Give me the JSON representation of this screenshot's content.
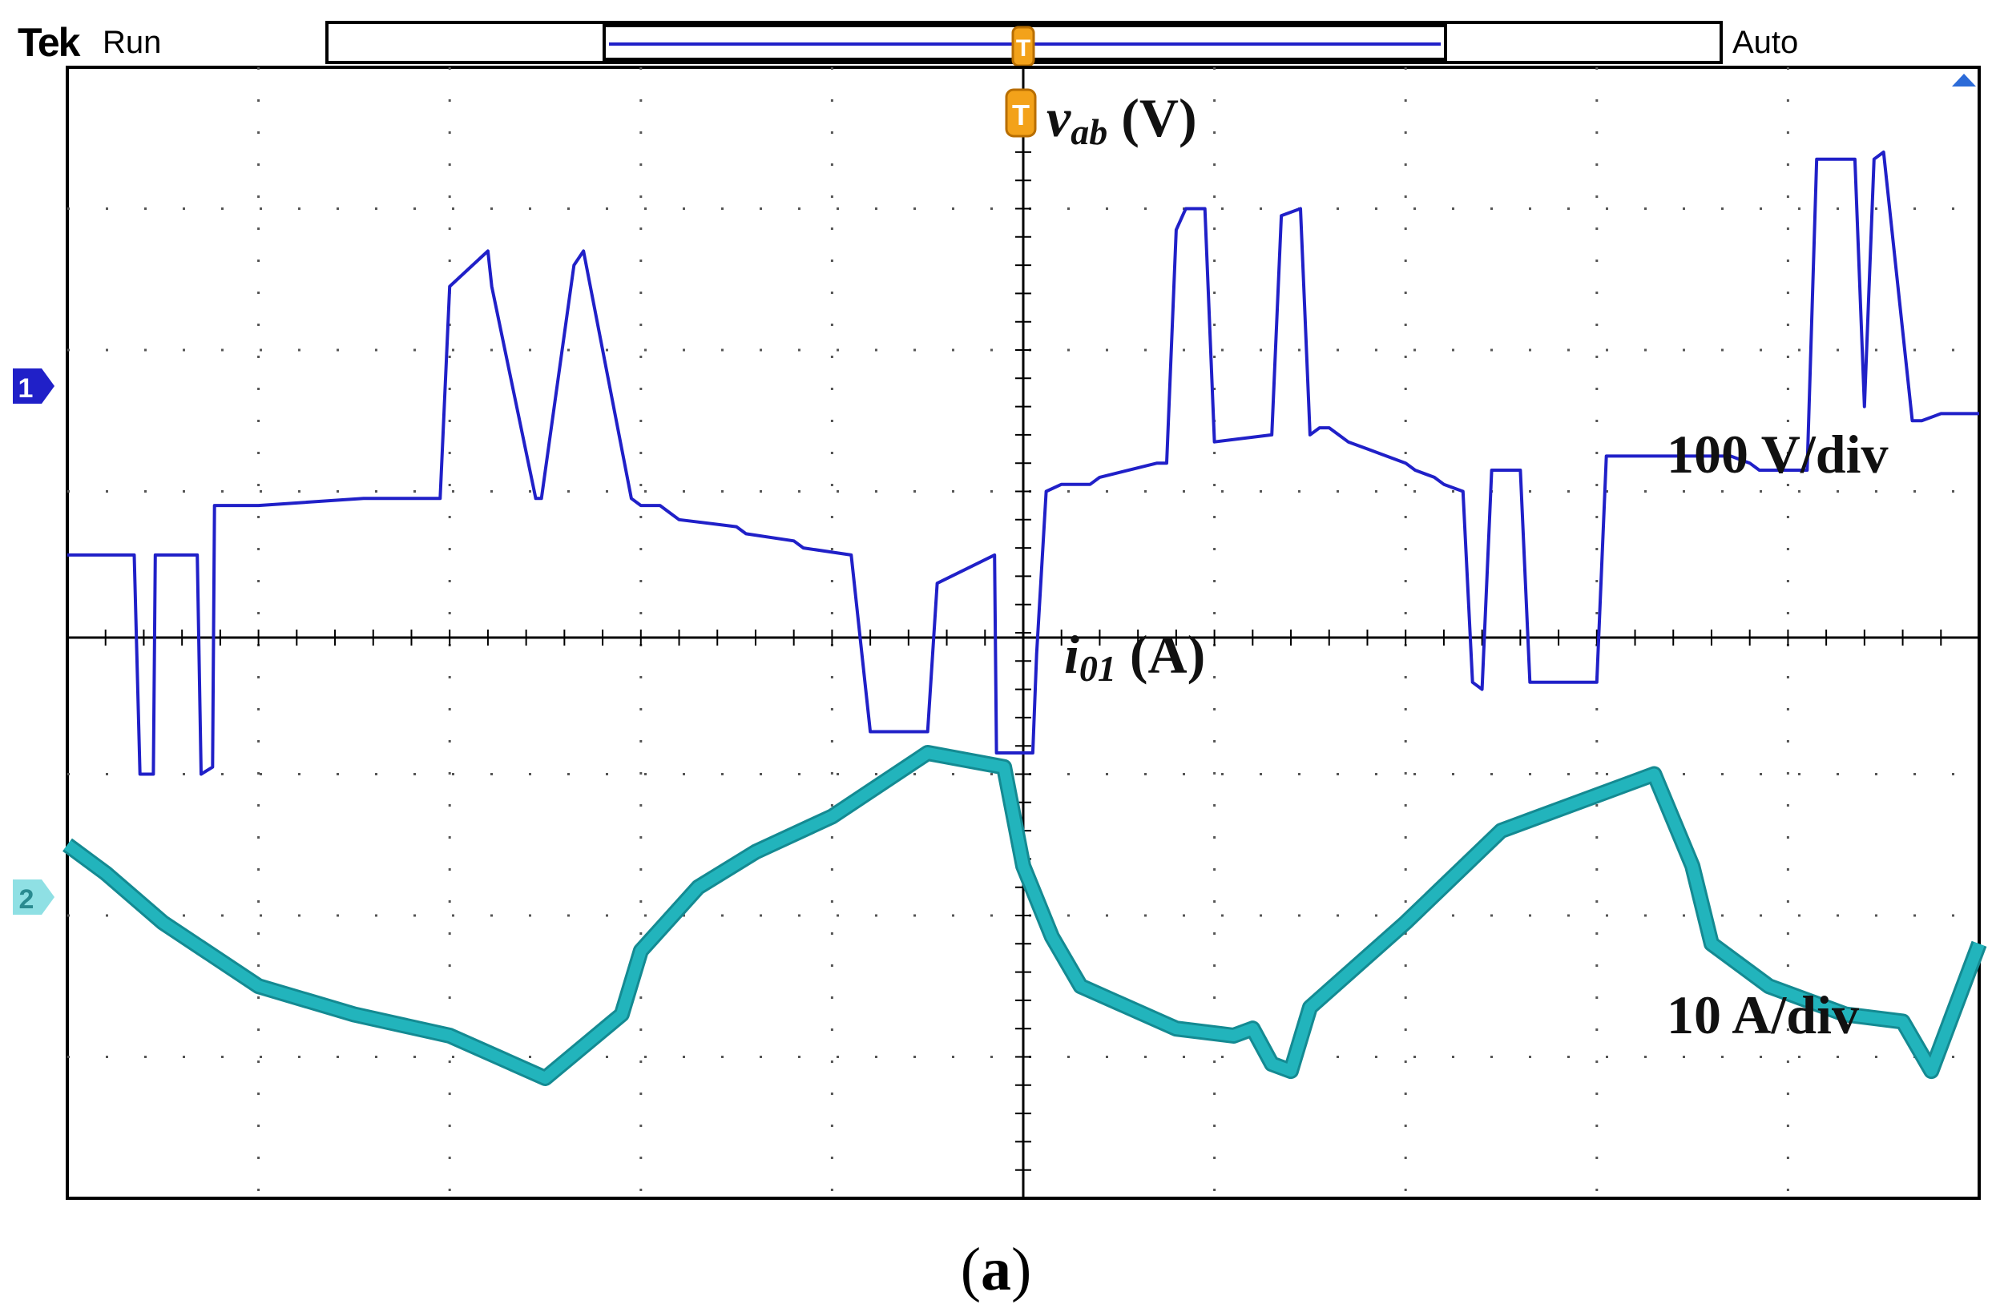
{
  "header": {
    "brand": "Tek",
    "run_state": "Run",
    "trigger_mode": "Auto",
    "trigger_marker": "T"
  },
  "channels": [
    {
      "id": "1",
      "marker": "1",
      "color": "#2020c8"
    },
    {
      "id": "2",
      "marker": "2",
      "color": "#22b4bc"
    }
  ],
  "chart_data": {
    "type": "line",
    "title": "",
    "grid": true,
    "x_divisions": 10,
    "y_divisions": 8,
    "series": [
      {
        "name": "vab (V)",
        "label_main": "v",
        "label_sub": "ab",
        "label_unit": " (V)",
        "scale": "100 V/div",
        "color": "#2020c8",
        "x": [
          0,
          0.35,
          0.38,
          0.45,
          0.46,
          0.68,
          0.7,
          0.76,
          0.77,
          0.98,
          1.0,
          1.55,
          1.6,
          1.95,
          2.0,
          2.2,
          2.22,
          2.45,
          2.48,
          2.65,
          2.7,
          2.95,
          3.0,
          3.1,
          3.15,
          3.2,
          3.5,
          3.55,
          3.8,
          3.85,
          4.1,
          4.2,
          4.5,
          4.55,
          4.85,
          4.86,
          5.05,
          5.07,
          5.12,
          5.2,
          5.35,
          5.4,
          5.7,
          5.75,
          5.8,
          5.85,
          5.95,
          6.0,
          6.3,
          6.35,
          6.45,
          6.5,
          6.55,
          6.6,
          6.65,
          6.7,
          6.8,
          6.9,
          7.0,
          7.05,
          7.15,
          7.2,
          7.3,
          7.35,
          7.4,
          7.45,
          7.6,
          7.65,
          8.0,
          8.05,
          8.4,
          8.45,
          8.5,
          8.55,
          8.65,
          8.7,
          8.8,
          8.85,
          9.1,
          9.15,
          9.35,
          9.4,
          9.45,
          9.5,
          9.65,
          9.7,
          9.8,
          9.85,
          10.0
        ],
        "y": [
          -0.1,
          -0.1,
          -1.65,
          -1.65,
          -0.1,
          -0.1,
          -1.65,
          -1.6,
          0.25,
          0.25,
          0.25,
          0.3,
          0.3,
          0.3,
          1.8,
          2.05,
          1.8,
          0.3,
          0.3,
          1.95,
          2.05,
          0.3,
          0.25,
          0.25,
          0.2,
          0.15,
          0.1,
          0.05,
          0.0,
          -0.05,
          -0.1,
          -1.35,
          -1.35,
          -0.3,
          -0.1,
          -1.5,
          -1.5,
          -0.8,
          0.35,
          0.4,
          0.4,
          0.45,
          0.55,
          0.55,
          2.2,
          2.35,
          2.35,
          0.7,
          0.75,
          2.3,
          2.35,
          0.75,
          0.8,
          0.8,
          0.75,
          0.7,
          0.65,
          0.6,
          0.55,
          0.5,
          0.45,
          0.4,
          0.35,
          -1.0,
          -1.05,
          0.5,
          0.5,
          -1.0,
          -1.0,
          0.6,
          0.6,
          0.6,
          0.6,
          0.6,
          0.6,
          0.6,
          0.55,
          0.5,
          0.5,
          2.7,
          2.7,
          0.95,
          2.7,
          2.75,
          0.85,
          0.85,
          0.9,
          0.9,
          0.9
        ]
      },
      {
        "name": "i01 (A)",
        "label_main": "i",
        "label_sub": "01",
        "label_unit": " (A)",
        "scale": "10 A/div",
        "color": "#22b4bc",
        "x": [
          0,
          0.2,
          0.5,
          1.0,
          1.5,
          2.0,
          2.5,
          2.9,
          3.0,
          3.3,
          3.6,
          4.0,
          4.5,
          4.9,
          5.0,
          5.15,
          5.3,
          5.8,
          6.1,
          6.2,
          6.3,
          6.4,
          6.5,
          7.0,
          7.5,
          8.0,
          8.3,
          8.5,
          8.6,
          8.9,
          9.3,
          9.6,
          9.75,
          10.0
        ],
        "y": [
          1.1,
          0.9,
          0.55,
          0.1,
          -0.1,
          -0.25,
          -0.55,
          -0.1,
          0.35,
          0.8,
          1.05,
          1.3,
          1.75,
          1.65,
          0.95,
          0.45,
          0.1,
          -0.2,
          -0.25,
          -0.2,
          -0.45,
          -0.5,
          -0.05,
          0.55,
          1.2,
          1.45,
          1.6,
          0.95,
          0.4,
          0.1,
          -0.1,
          -0.15,
          -0.5,
          0.4
        ]
      }
    ]
  },
  "caption": {
    "open": "(",
    "letter": "a",
    "close": ")"
  }
}
